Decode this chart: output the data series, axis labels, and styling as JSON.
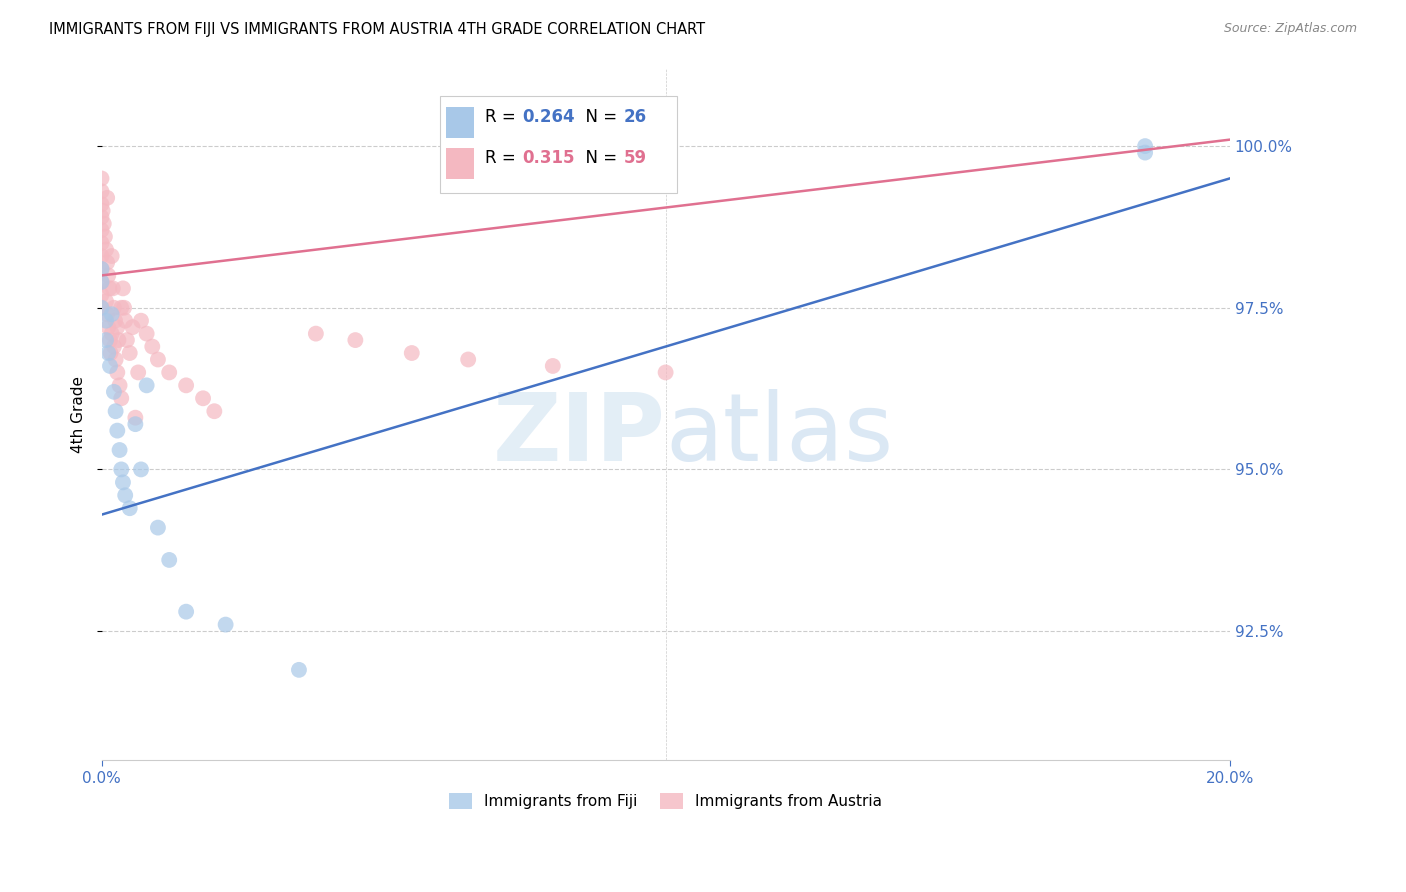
{
  "title": "IMMIGRANTS FROM FIJI VS IMMIGRANTS FROM AUSTRIA 4TH GRADE CORRELATION CHART",
  "source": "Source: ZipAtlas.com",
  "ylabel": "4th Grade",
  "watermark_zip": "ZIP",
  "watermark_atlas": "atlas",
  "fiji_R": 0.264,
  "fiji_N": 26,
  "austria_R": 0.315,
  "austria_N": 59,
  "xlim": [
    0.0,
    20.0
  ],
  "ylim": [
    90.5,
    101.2
  ],
  "yticks": [
    92.5,
    95.0,
    97.5,
    100.0
  ],
  "ytick_labels": [
    "92.5%",
    "95.0%",
    "97.5%",
    "100.0%"
  ],
  "fiji_color": "#a8c8e8",
  "austria_color": "#f4b8c1",
  "fiji_line_color": "#4472c4",
  "austria_line_color": "#e07090",
  "fiji_scatter_x": [
    0.0,
    0.0,
    0.0,
    0.08,
    0.08,
    0.12,
    0.15,
    0.18,
    0.22,
    0.25,
    0.28,
    0.32,
    0.35,
    0.38,
    0.42,
    0.5,
    0.6,
    0.7,
    0.8,
    1.0,
    1.2,
    1.5,
    2.2,
    3.5,
    18.5,
    18.5
  ],
  "fiji_scatter_y": [
    97.5,
    97.9,
    98.1,
    97.3,
    97.0,
    96.8,
    96.6,
    97.4,
    96.2,
    95.9,
    95.6,
    95.3,
    95.0,
    94.8,
    94.6,
    94.4,
    95.7,
    95.0,
    96.3,
    94.1,
    93.6,
    92.8,
    92.6,
    91.9,
    100.0,
    99.9
  ],
  "austria_scatter_x": [
    0.0,
    0.0,
    0.0,
    0.0,
    0.0,
    0.0,
    0.0,
    0.0,
    0.0,
    0.0,
    0.0,
    0.02,
    0.04,
    0.06,
    0.08,
    0.08,
    0.1,
    0.1,
    0.1,
    0.12,
    0.12,
    0.14,
    0.15,
    0.16,
    0.18,
    0.18,
    0.2,
    0.22,
    0.22,
    0.24,
    0.25,
    0.28,
    0.28,
    0.3,
    0.32,
    0.35,
    0.35,
    0.38,
    0.4,
    0.42,
    0.45,
    0.5,
    0.55,
    0.6,
    0.65,
    0.7,
    0.8,
    0.9,
    1.0,
    1.2,
    1.5,
    1.8,
    2.0,
    3.8,
    4.5,
    5.5,
    6.5,
    8.0,
    10.0
  ],
  "austria_scatter_y": [
    99.5,
    99.3,
    99.1,
    98.9,
    98.7,
    98.5,
    98.3,
    98.1,
    97.9,
    97.7,
    97.5,
    99.0,
    98.8,
    98.6,
    98.4,
    97.6,
    99.2,
    98.2,
    97.4,
    98.0,
    97.2,
    97.8,
    97.0,
    96.8,
    98.3,
    97.1,
    97.8,
    97.5,
    96.9,
    97.3,
    96.7,
    97.2,
    96.5,
    97.0,
    96.3,
    97.5,
    96.1,
    97.8,
    97.5,
    97.3,
    97.0,
    96.8,
    97.2,
    95.8,
    96.5,
    97.3,
    97.1,
    96.9,
    96.7,
    96.5,
    96.3,
    96.1,
    95.9,
    97.1,
    97.0,
    96.8,
    96.7,
    96.6,
    96.5
  ],
  "fiji_trend": [
    94.3,
    99.5
  ],
  "austria_trend": [
    98.0,
    100.1
  ],
  "background_color": "#ffffff",
  "grid_color": "#cccccc",
  "tick_color": "#4472c4",
  "title_fontsize": 10.5,
  "axis_fontsize": 11,
  "legend_fontsize": 11
}
